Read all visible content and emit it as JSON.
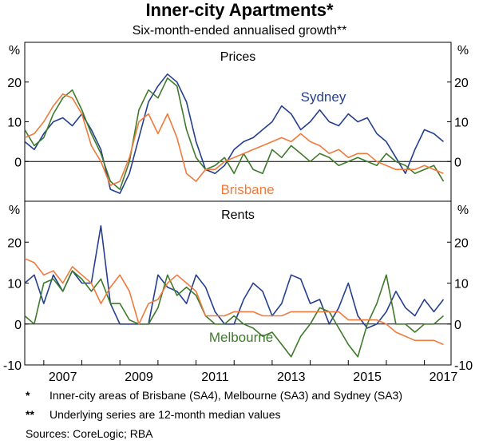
{
  "title": "Inner-city Apartments*",
  "subtitle": "Six-month-ended annualised growth**",
  "notes": [
    {
      "mark": "*",
      "text": "Inner-city areas of Brisbane (SA4), Melbourne (SA3) and Sydney (SA3)"
    },
    {
      "mark": "**",
      "text": "Underlying series are 12-month median values"
    }
  ],
  "sources": "Sources: CoreLogic; RBA",
  "colors": {
    "Sydney": "#243f8f",
    "Melbourne": "#3e7a2a",
    "Brisbane": "#f07a3c"
  },
  "chart_data": [
    {
      "type": "line",
      "panel_title": "Prices",
      "unit": "%",
      "ylim": [
        -10,
        30
      ],
      "yticks": [
        0,
        10,
        20
      ],
      "xlim": [
        2006.5,
        2017.7
      ],
      "xtick_labels": [
        "2007",
        "2009",
        "2011",
        "2013",
        "2015",
        "2017"
      ],
      "x": [
        2006.5,
        2006.75,
        2007,
        2007.25,
        2007.5,
        2007.75,
        2008,
        2008.25,
        2008.5,
        2008.75,
        2009,
        2009.25,
        2009.5,
        2009.75,
        2010,
        2010.25,
        2010.5,
        2010.75,
        2011,
        2011.25,
        2011.5,
        2011.75,
        2012,
        2012.25,
        2012.5,
        2012.75,
        2013,
        2013.25,
        2013.5,
        2013.75,
        2014,
        2014.25,
        2014.5,
        2014.75,
        2015,
        2015.25,
        2015.5,
        2015.75,
        2016,
        2016.25,
        2016.5,
        2016.75,
        2017,
        2017.25,
        2017.5
      ],
      "series": [
        {
          "name": "Sydney",
          "values": [
            5,
            3,
            7,
            10,
            11,
            9,
            12,
            8,
            3,
            -7,
            -8,
            -3,
            6,
            15,
            19,
            22,
            20,
            15,
            5,
            -2,
            -3,
            -1,
            3,
            5,
            6,
            8,
            10,
            14,
            12,
            8,
            10,
            13,
            10,
            9,
            12,
            10,
            11,
            7,
            5,
            1,
            -3,
            3,
            8,
            7,
            5
          ]
        },
        {
          "name": "Melbourne",
          "values": [
            8,
            4,
            6,
            12,
            16,
            18,
            13,
            7,
            2,
            -5,
            -7,
            0,
            13,
            18,
            16,
            21,
            19,
            8,
            1,
            -2,
            -1,
            1,
            -3,
            2,
            -2,
            -3,
            3,
            1,
            4,
            2,
            0,
            2,
            1,
            -1,
            0,
            1,
            0,
            -1,
            2,
            0,
            -1,
            -3,
            -2,
            -1,
            -5
          ]
        },
        {
          "name": "Brisbane",
          "values": [
            6,
            7,
            10,
            14,
            17,
            16,
            12,
            4,
            0,
            -6,
            -5,
            1,
            10,
            12,
            7,
            12,
            6,
            -3,
            -5,
            -2,
            -2,
            0,
            1,
            2,
            3,
            4,
            5,
            6,
            5,
            7,
            5,
            4,
            2,
            3,
            1,
            2,
            2,
            0,
            -1,
            -2,
            -2,
            -2,
            -1,
            -2,
            -3
          ]
        }
      ]
    },
    {
      "type": "line",
      "panel_title": "Rents",
      "unit": "%",
      "ylim": [
        -10,
        30
      ],
      "yticks": [
        -10,
        0,
        10,
        20
      ],
      "xlim": [
        2006.5,
        2017.7
      ],
      "xtick_labels": [
        "2007",
        "2009",
        "2011",
        "2013",
        "2015",
        "2017"
      ],
      "x": [
        2006.5,
        2006.75,
        2007,
        2007.25,
        2007.5,
        2007.75,
        2008,
        2008.25,
        2008.5,
        2008.75,
        2009,
        2009.25,
        2009.5,
        2009.75,
        2010,
        2010.25,
        2010.5,
        2010.75,
        2011,
        2011.25,
        2011.5,
        2011.75,
        2012,
        2012.25,
        2012.5,
        2012.75,
        2013,
        2013.25,
        2013.5,
        2013.75,
        2014,
        2014.25,
        2014.5,
        2014.75,
        2015,
        2015.25,
        2015.5,
        2015.75,
        2016,
        2016.25,
        2016.5,
        2016.75,
        2017,
        2017.25,
        2017.5
      ],
      "series": [
        {
          "name": "Sydney",
          "values": [
            10,
            12,
            5,
            12,
            8,
            13,
            10,
            10,
            24,
            5,
            0,
            0,
            0,
            0,
            12,
            9,
            8,
            5,
            12,
            9,
            3,
            0,
            0,
            6,
            10,
            8,
            2,
            5,
            12,
            11,
            5,
            6,
            0,
            4,
            10,
            2,
            -1,
            0,
            3,
            8,
            4,
            2,
            6,
            3,
            6
          ]
        },
        {
          "name": "Melbourne",
          "values": [
            2,
            0,
            10,
            11,
            8,
            13,
            11,
            8,
            11,
            5,
            5,
            1,
            0,
            0,
            4,
            12,
            7,
            9,
            7,
            2,
            0,
            0,
            2,
            0,
            -1,
            -3,
            -2,
            -5,
            -8,
            -3,
            0,
            4,
            3,
            -1,
            -5,
            -8,
            0,
            5,
            12,
            0,
            0,
            -2,
            0,
            0,
            2
          ]
        },
        {
          "name": "Brisbane",
          "values": [
            16,
            15,
            12,
            13,
            10,
            14,
            12,
            10,
            5,
            9,
            12,
            8,
            0,
            5,
            6,
            10,
            12,
            10,
            8,
            2,
            2,
            2,
            3,
            3,
            3,
            2,
            2,
            2,
            3,
            3,
            3,
            3,
            3,
            3,
            1,
            1,
            1,
            1,
            0,
            -2,
            -3,
            -4,
            -4,
            -4,
            -5
          ]
        }
      ]
    }
  ],
  "annotations": {
    "sydney": "Sydney",
    "brisbane": "Brisbane",
    "melbourne": "Melbourne"
  }
}
